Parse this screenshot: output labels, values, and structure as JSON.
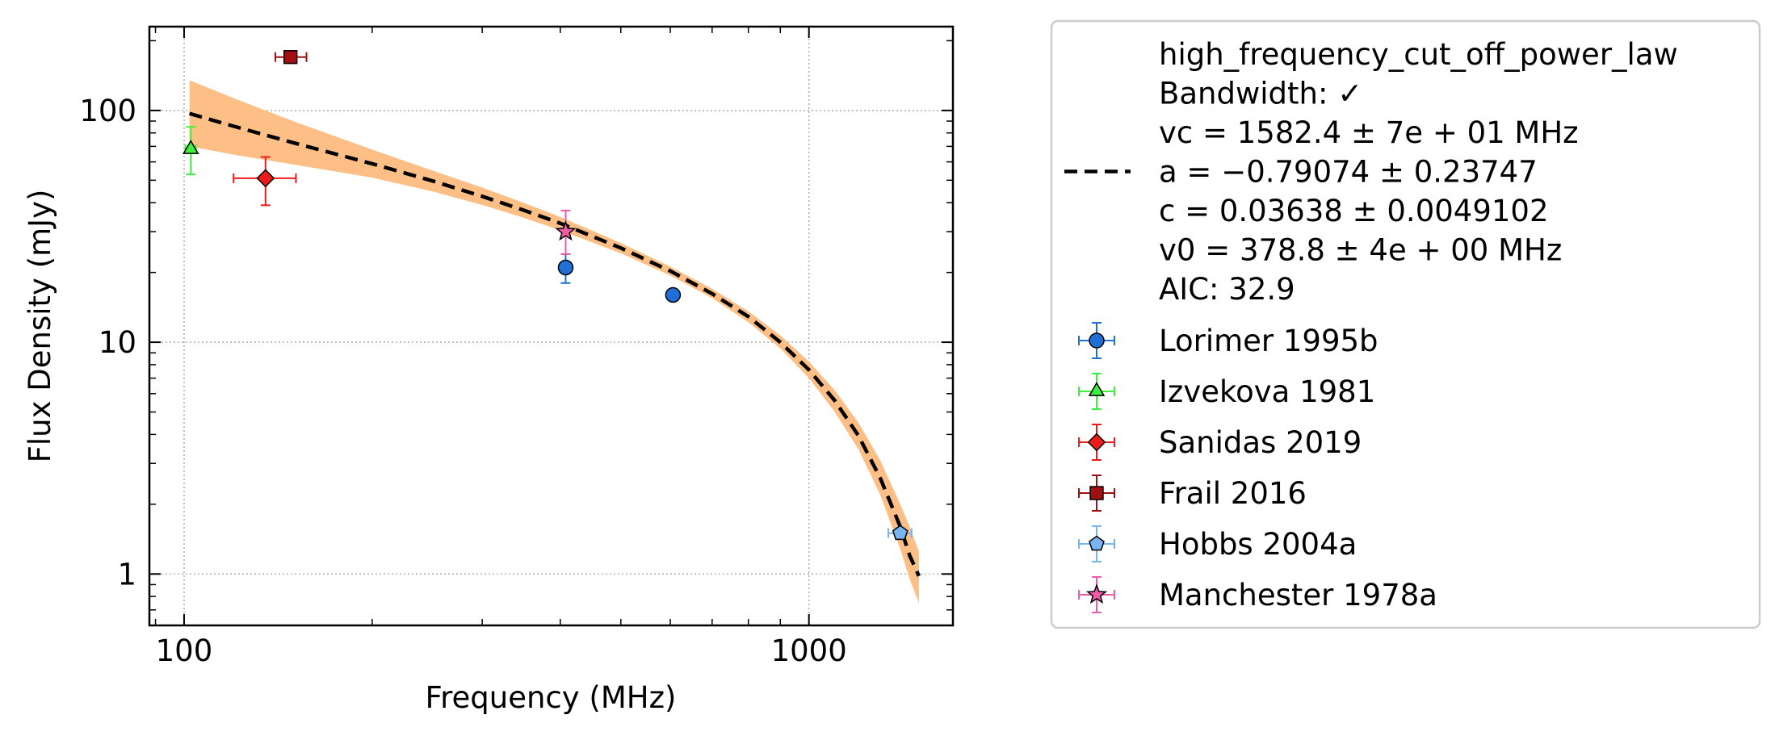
{
  "chart_data": {
    "type": "scatter",
    "xlabel": "Frequency (MHz)",
    "ylabel": "Flux Density (mJy)",
    "xscale": "log",
    "yscale": "log",
    "xlim": [
      88,
      1700
    ],
    "ylim": [
      0.6,
      230
    ],
    "x_ticks": [
      {
        "value": 100,
        "label": "100"
      },
      {
        "value": 1000,
        "label": "1000"
      }
    ],
    "y_ticks": [
      {
        "value": 1,
        "label": "1"
      },
      {
        "value": 10,
        "label": "10"
      },
      {
        "value": 100,
        "label": "100"
      }
    ],
    "grid": true,
    "legend_position": "outside-right",
    "fit": {
      "model": "high_frequency_cut_off_power_law",
      "label_lines": [
        "high_frequency_cut_off_power_law",
        "Bandwidth: ✓",
        "vc = 1582.4 ± 7e + 01 MHz",
        "a = −0.79074 ± 0.23747",
        "c = 0.03638 ± 0.0049102",
        "v0 = 378.8 ± 4e + 00 MHz",
        "AIC: 32.9"
      ],
      "line_color": "#000000",
      "band_color": "#fdbf86",
      "x": [
        102,
        120,
        150,
        200,
        250,
        300,
        350,
        400,
        500,
        600,
        700,
        800,
        900,
        1000,
        1100,
        1200,
        1300,
        1400,
        1450,
        1500
      ],
      "y": [
        97,
        85.5,
        72.4,
        58.9,
        49.6,
        42.6,
        37.1,
        32.6,
        25.5,
        20.3,
        16.2,
        12.9,
        10.0,
        7.6,
        5.6,
        3.95,
        2.6,
        1.6,
        1.2,
        0.98
      ],
      "band_upper": [
        135,
        113,
        89.6,
        67.8,
        55,
        46.5,
        39.9,
        34.7,
        26.8,
        21.2,
        17.0,
        13.6,
        10.7,
        8.25,
        6.2,
        4.5,
        3.1,
        2.0,
        1.6,
        1.25
      ],
      "band_lower": [
        70,
        64.5,
        58.4,
        51.3,
        44.7,
        39.1,
        34.4,
        30.4,
        24.2,
        19.4,
        15.5,
        12.2,
        9.4,
        7.0,
        5.0,
        3.45,
        2.2,
        1.28,
        0.95,
        0.75
      ]
    },
    "series": [
      {
        "name": "Lorimer 1995b",
        "marker": "circle",
        "color": "#1f6fd6",
        "points": [
          {
            "x": 408,
            "y": 21,
            "y_lo": 18,
            "y_hi": 24
          },
          {
            "x": 606,
            "y": 16,
            "y_lo": 15.4,
            "y_hi": 16.6
          }
        ]
      },
      {
        "name": "Izvekova 1981",
        "marker": "triangle",
        "color": "#3ef03e",
        "points": [
          {
            "x": 102.5,
            "y": 68,
            "y_lo": 53,
            "y_hi": 85,
            "x_lo": 100.5,
            "x_hi": 104.5
          }
        ]
      },
      {
        "name": "Sanidas 2019",
        "marker": "diamond",
        "color": "#ee1b1b",
        "points": [
          {
            "x": 135,
            "y": 51,
            "y_lo": 39,
            "y_hi": 63,
            "x_lo": 120,
            "x_hi": 151
          }
        ]
      },
      {
        "name": "Frail 2016",
        "marker": "square",
        "color": "#a01010",
        "points": [
          {
            "x": 148,
            "y": 170,
            "y_lo": 163,
            "y_hi": 177,
            "x_lo": 140,
            "x_hi": 157
          }
        ]
      },
      {
        "name": "Hobbs 2004a",
        "marker": "pentagon",
        "color": "#78b4f0",
        "points": [
          {
            "x": 1400,
            "y": 1.5,
            "y_lo": 1.42,
            "y_hi": 1.58,
            "x_lo": 1340,
            "x_hi": 1460
          }
        ]
      },
      {
        "name": "Manchester 1978a",
        "marker": "star",
        "color": "#ee5ca7",
        "points": [
          {
            "x": 408,
            "y": 30,
            "y_lo": 24,
            "y_hi": 37
          }
        ]
      }
    ]
  }
}
